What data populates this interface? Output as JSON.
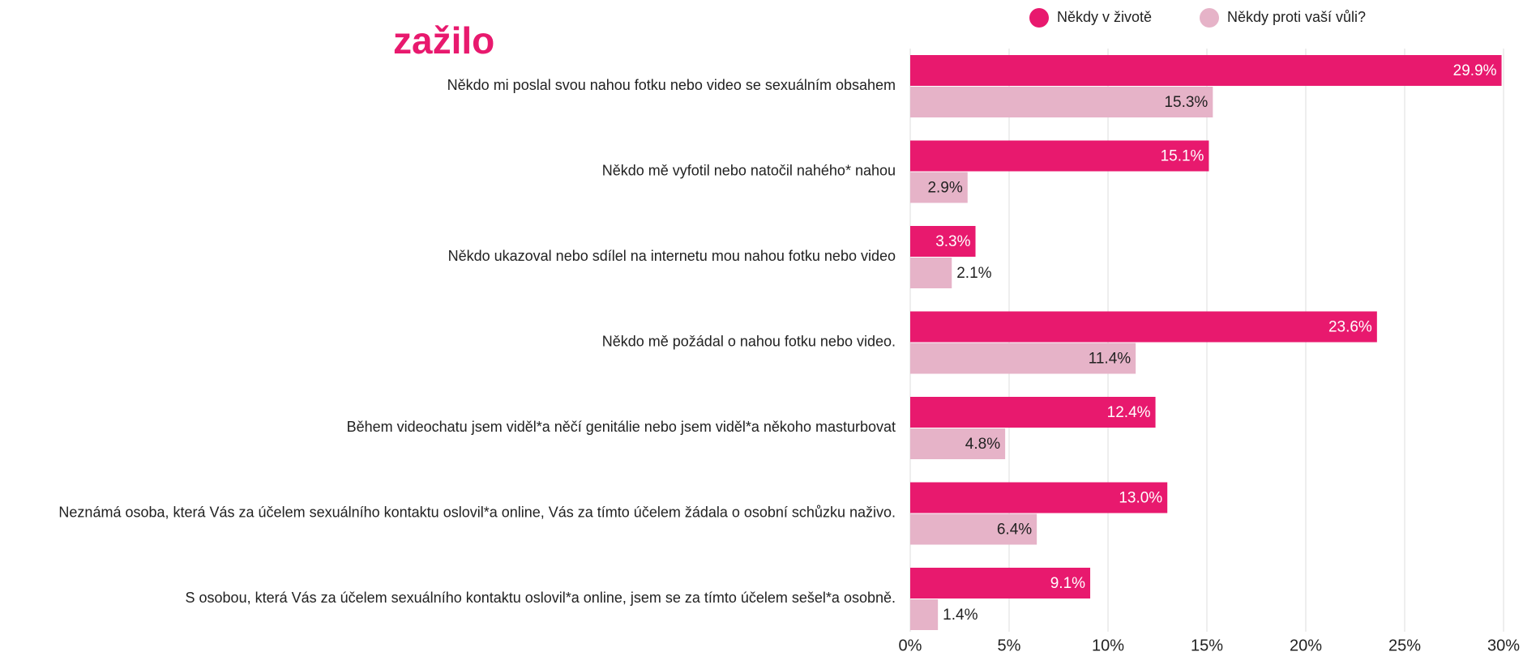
{
  "chart_data": {
    "type": "hbar",
    "title": "zažilo",
    "categories": [
      "Někdo mi poslal svou nahou fotku nebo video se sexuálním obsahem",
      "Někdo mě vyfotil nebo natočil nahého* nahou",
      "Někdo ukazoval nebo sdílel na internetu mou nahou fotku nebo video",
      "Někdo mě požádal o nahou fotku nebo video.",
      "Během videochatu jsem viděl*a něčí genitálie nebo jsem viděl*a někoho masturbovat",
      "Neznámá osoba, která Vás za účelem sexuálního kontaktu oslovil*a online, Vás za tímto účelem žádala o osobní schůzku naživo.",
      "S osobou, která Vás za účelem sexuálního kontaktu oslovil*a online, jsem se za tímto účelem sešel*a osobně."
    ],
    "series": [
      {
        "name": "Někdy v životě",
        "color": "#e8196e",
        "values": [
          29.9,
          15.1,
          3.3,
          23.6,
          12.4,
          13.0,
          9.1
        ],
        "value_labels": [
          "29.9%",
          "15.1%",
          "3.3%",
          "23.6%",
          "12.4%",
          "13.0%",
          "9.1%"
        ]
      },
      {
        "name": "Někdy proti vaší vůli?",
        "color": "#e6b3c8",
        "values": [
          15.3,
          2.9,
          2.1,
          11.4,
          4.8,
          6.4,
          1.4
        ],
        "value_labels": [
          "15.3%",
          "2.9%",
          "2.1%",
          "11.4%",
          "4.8%",
          "6.4%",
          "1.4%"
        ]
      }
    ],
    "xlim": [
      0,
      30
    ],
    "xticks": [
      {
        "value": 0,
        "label": "0%"
      },
      {
        "value": 5,
        "label": "5%"
      },
      {
        "value": 10,
        "label": "10%"
      },
      {
        "value": 15,
        "label": "15%"
      },
      {
        "value": 20,
        "label": "20%"
      },
      {
        "value": 25,
        "label": "25%"
      },
      {
        "value": 30,
        "label": "30%"
      }
    ],
    "grid": true
  }
}
